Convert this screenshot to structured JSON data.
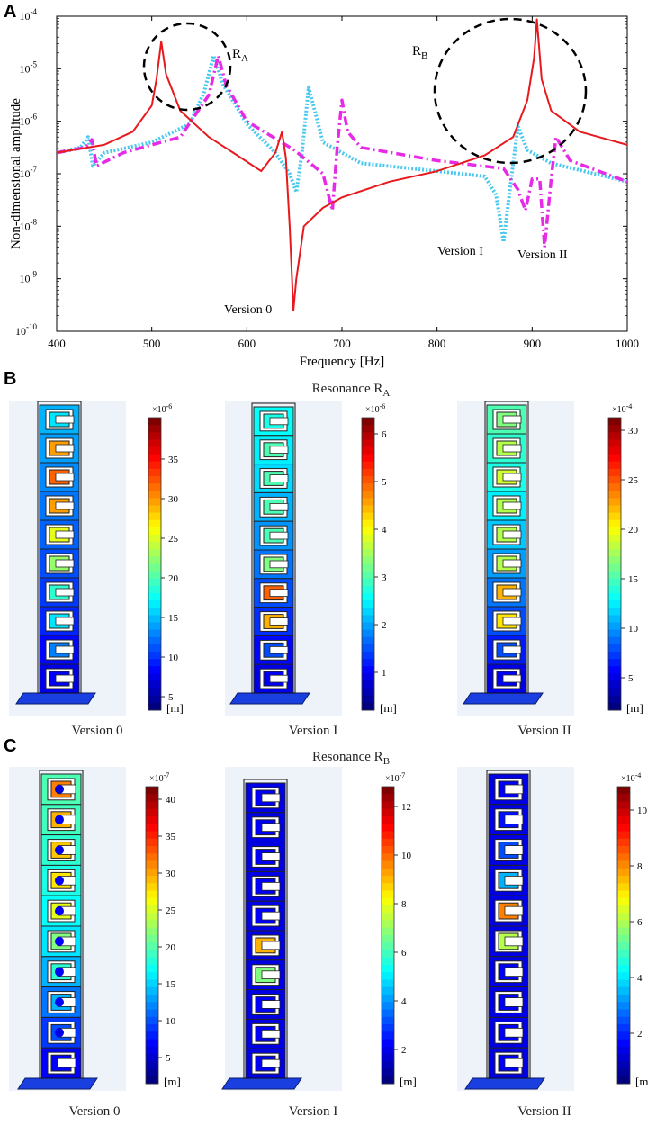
{
  "panels": {
    "a": "A",
    "b": "B",
    "c": "C"
  },
  "chart_data": {
    "type": "line",
    "xlabel": "Frequency  [Hz]",
    "ylabel": "Non-dimensional amplitude",
    "xlim": [
      400,
      1000
    ],
    "ylim_log10": [
      -10,
      -4
    ],
    "yscale": "log",
    "x_ticks": [
      "400",
      "500",
      "600",
      "700",
      "800",
      "900",
      "1000"
    ],
    "y_tick_exponents": [
      "-10",
      "-9",
      "-8",
      "-7",
      "-6",
      "-5",
      "-4"
    ],
    "y_tick_base": "10",
    "colors": {
      "version0": "#e8191d",
      "version1": "#49c8ee",
      "version2": "#e62ae6"
    },
    "series": [
      {
        "name": "Version 0",
        "style": "solid",
        "color": "#e8191d",
        "x": [
          400,
          450,
          480,
          500,
          505,
          510,
          515,
          530,
          560,
          590,
          615,
          630,
          637,
          641,
          645,
          649,
          652,
          660,
          680,
          700,
          750,
          800,
          850,
          880,
          895,
          902,
          905,
          910,
          920,
          950,
          1000
        ],
        "log10y": [
          -6.6,
          -6.45,
          -6.2,
          -5.7,
          -5.2,
          -4.48,
          -5.1,
          -5.8,
          -6.3,
          -6.65,
          -6.95,
          -6.6,
          -6.2,
          -6.7,
          -8.0,
          -9.6,
          -9.0,
          -8.0,
          -7.65,
          -7.45,
          -7.15,
          -6.95,
          -6.65,
          -6.3,
          -5.6,
          -4.8,
          -4.06,
          -5.2,
          -5.8,
          -6.2,
          -6.45
        ]
      },
      {
        "name": "Version I",
        "style": "dotted",
        "color": "#49c8ee",
        "x": [
          400,
          425,
          433,
          438,
          450,
          500,
          540,
          555,
          565,
          575,
          600,
          630,
          645,
          652,
          658,
          665,
          680,
          720,
          800,
          850,
          862,
          870,
          878,
          885,
          895,
          920,
          1000
        ],
        "log10y": [
          -6.6,
          -6.5,
          -6.3,
          -6.85,
          -6.6,
          -6.4,
          -6.05,
          -5.45,
          -4.75,
          -5.3,
          -6.05,
          -6.6,
          -7.0,
          -7.35,
          -6.6,
          -5.35,
          -6.4,
          -6.8,
          -6.95,
          -7.05,
          -7.4,
          -8.3,
          -7.1,
          -6.1,
          -6.55,
          -6.8,
          -7.15
        ]
      },
      {
        "name": "Version II",
        "style": "dashdot",
        "color": "#e62ae6",
        "x": [
          400,
          430,
          437,
          442,
          470,
          530,
          560,
          570,
          578,
          600,
          650,
          680,
          690,
          695,
          700,
          706,
          720,
          800,
          870,
          885,
          893,
          900,
          908,
          913,
          920,
          925,
          940,
          1000
        ],
        "log10y": [
          -6.6,
          -6.5,
          -6.35,
          -6.85,
          -6.6,
          -6.3,
          -5.5,
          -4.75,
          -5.3,
          -6.0,
          -6.55,
          -7.0,
          -7.7,
          -6.5,
          -5.6,
          -6.2,
          -6.5,
          -6.75,
          -6.9,
          -7.3,
          -7.7,
          -7.1,
          -7.1,
          -8.4,
          -7.1,
          -6.3,
          -6.75,
          -7.15
        ]
      }
    ],
    "annotations": {
      "ra_main": "R",
      "ra_sub": "A",
      "rb_main": "R",
      "rb_sub": "B",
      "version0": "Version 0",
      "version1": "Version I",
      "version2": "Version II"
    }
  },
  "section_b": {
    "title_main": "Resonance R",
    "title_sub": "A",
    "captions": [
      "Version 0",
      "Version I",
      "Version II"
    ],
    "colorbars": [
      {
        "multiplier": "×10",
        "exp": "-6",
        "ticks": [
          "35",
          "30",
          "25",
          "20",
          "15",
          "10",
          "5"
        ],
        "unit": "[m]"
      },
      {
        "multiplier": "×10",
        "exp": "-6",
        "ticks": [
          "6",
          "5",
          "4",
          "3",
          "2",
          "1"
        ],
        "unit": "[m]"
      },
      {
        "multiplier": "×10",
        "exp": "-4",
        "ticks": [
          "30",
          "25",
          "20",
          "15",
          "10",
          "5"
        ],
        "unit": "[m]"
      }
    ]
  },
  "section_c": {
    "title_main": "Resonance R",
    "title_sub": "B",
    "captions": [
      "Version 0",
      "Version I",
      "Version II"
    ],
    "colorbars": [
      {
        "multiplier": "×10",
        "exp": "-7",
        "ticks": [
          "40",
          "35",
          "30",
          "25",
          "20",
          "15",
          "10",
          "5"
        ],
        "unit": "[m]"
      },
      {
        "multiplier": "×10",
        "exp": "-7",
        "ticks": [
          "12",
          "10",
          "8",
          "6",
          "4",
          "2"
        ],
        "unit": "[m]"
      },
      {
        "multiplier": "×10",
        "exp": "-4",
        "ticks": [
          "10",
          "8",
          "6",
          "4",
          "2"
        ],
        "unit": "[m]"
      }
    ]
  }
}
